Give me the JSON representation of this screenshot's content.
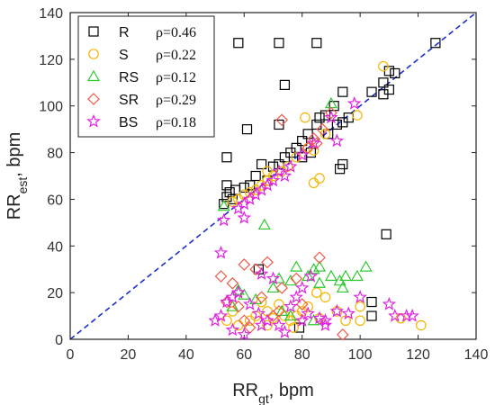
{
  "chart_data": {
    "type": "scatter",
    "xlabel": "RR",
    "xlabel_sub": "gt",
    "xlabel_unit": ", bpm",
    "ylabel": "RR",
    "ylabel_sub": "est",
    "ylabel_unit": ", bpm",
    "xlim": [
      0,
      140
    ],
    "ylim": [
      0,
      140
    ],
    "xticks": [
      0,
      20,
      40,
      60,
      80,
      100,
      120,
      140
    ],
    "yticks": [
      0,
      20,
      40,
      60,
      80,
      100,
      120,
      140
    ],
    "identity_line": true,
    "legend_position": "top-left",
    "series": [
      {
        "name": "R",
        "rho_label": "ρ=0.46",
        "marker": "square",
        "color": "#000000",
        "points": [
          [
            58,
            127
          ],
          [
            72,
            127
          ],
          [
            85,
            127
          ],
          [
            126,
            127
          ],
          [
            112,
            114
          ],
          [
            110,
            115
          ],
          [
            108,
            110
          ],
          [
            110,
            107
          ],
          [
            108,
            105
          ],
          [
            104,
            106
          ],
          [
            94,
            106
          ],
          [
            74,
            109
          ],
          [
            91,
            100
          ],
          [
            88,
            96
          ],
          [
            86,
            95
          ],
          [
            85,
            92
          ],
          [
            92,
            92
          ],
          [
            89,
            88
          ],
          [
            82,
            88
          ],
          [
            80,
            85
          ],
          [
            78,
            82
          ],
          [
            76,
            80
          ],
          [
            74,
            78
          ],
          [
            72,
            75
          ],
          [
            70,
            74
          ],
          [
            66,
            75
          ],
          [
            64,
            70
          ],
          [
            68,
            68
          ],
          [
            62,
            66
          ],
          [
            60,
            65
          ],
          [
            57,
            64
          ],
          [
            55,
            63
          ],
          [
            54,
            61
          ],
          [
            56,
            60
          ],
          [
            53,
            58
          ],
          [
            54,
            78
          ],
          [
            54,
            66
          ],
          [
            61,
            90
          ],
          [
            72,
            92
          ],
          [
            93,
            73
          ],
          [
            94,
            75
          ],
          [
            109,
            45
          ],
          [
            65,
            30
          ],
          [
            104,
            16
          ],
          [
            104,
            10
          ],
          [
            79,
            5
          ],
          [
            94,
            93
          ],
          [
            96,
            95
          ],
          [
            80,
            78
          ],
          [
            83,
            80
          ]
        ]
      },
      {
        "name": "S",
        "rho_label": "ρ=0.22",
        "marker": "circle",
        "color": "#F2B600",
        "points": [
          [
            108,
            117
          ],
          [
            99,
            96
          ],
          [
            88,
            88
          ],
          [
            84,
            81
          ],
          [
            82,
            82
          ],
          [
            78,
            78
          ],
          [
            75,
            74
          ],
          [
            73,
            72
          ],
          [
            70,
            70
          ],
          [
            68,
            68
          ],
          [
            66,
            66
          ],
          [
            64,
            64
          ],
          [
            62,
            63
          ],
          [
            60,
            62
          ],
          [
            58,
            60
          ],
          [
            56,
            59
          ],
          [
            81,
            95
          ],
          [
            86,
            69
          ],
          [
            84,
            67
          ],
          [
            68,
            72
          ],
          [
            121,
            6
          ],
          [
            114,
            9
          ],
          [
            100,
            8
          ],
          [
            92,
            12
          ],
          [
            88,
            18
          ],
          [
            85,
            20
          ],
          [
            82,
            14
          ],
          [
            80,
            12
          ],
          [
            78,
            10
          ],
          [
            76,
            8
          ],
          [
            74,
            10
          ],
          [
            72,
            15
          ],
          [
            70,
            9
          ],
          [
            68,
            12
          ],
          [
            66,
            16
          ],
          [
            64,
            10
          ],
          [
            62,
            8
          ],
          [
            58,
            6
          ],
          [
            56,
            12
          ],
          [
            54,
            8
          ],
          [
            86,
            9
          ],
          [
            95,
            8
          ],
          [
            100,
            14
          ],
          [
            68,
            6
          ],
          [
            77,
            5
          ]
        ]
      },
      {
        "name": "RS",
        "rho_label": "ρ=0.12",
        "marker": "triangle",
        "color": "#2EC82E",
        "points": [
          [
            90,
            101
          ],
          [
            53,
            57
          ],
          [
            67,
            49
          ],
          [
            78,
            31
          ],
          [
            84,
            30
          ],
          [
            86,
            31
          ],
          [
            102,
            31
          ],
          [
            90,
            27
          ],
          [
            95,
            27
          ],
          [
            99,
            27
          ],
          [
            93,
            25
          ],
          [
            86,
            24
          ],
          [
            82,
            27
          ],
          [
            76,
            25
          ],
          [
            72,
            26
          ],
          [
            70,
            22
          ],
          [
            58,
            21
          ],
          [
            60,
            19
          ],
          [
            64,
            17
          ],
          [
            56,
            14
          ],
          [
            73,
            12
          ],
          [
            76,
            10
          ],
          [
            84,
            8
          ],
          [
            94,
            22
          ]
        ]
      },
      {
        "name": "SR",
        "rho_label": "ρ=0.29",
        "marker": "diamond",
        "color": "#F05A4A",
        "points": [
          [
            73,
            94
          ],
          [
            84,
            86
          ],
          [
            87,
            90
          ],
          [
            90,
            97
          ],
          [
            85,
            84
          ],
          [
            82,
            82
          ],
          [
            60,
            32
          ],
          [
            64,
            30
          ],
          [
            68,
            33
          ],
          [
            52,
            27
          ],
          [
            56,
            24
          ],
          [
            73,
            22
          ],
          [
            78,
            26
          ],
          [
            86,
            35
          ],
          [
            54,
            16
          ],
          [
            58,
            14
          ],
          [
            66,
            18
          ],
          [
            72,
            12
          ],
          [
            60,
            8
          ],
          [
            70,
            10
          ],
          [
            94,
            2
          ],
          [
            80,
            15
          ],
          [
            62,
            5
          ]
        ]
      },
      {
        "name": "BS",
        "rho_label": "ρ=0.18",
        "marker": "star",
        "color": "#E020E0",
        "points": [
          [
            98,
            101
          ],
          [
            92,
            85
          ],
          [
            90,
            95
          ],
          [
            84,
            84
          ],
          [
            80,
            79
          ],
          [
            76,
            74
          ],
          [
            74,
            70
          ],
          [
            72,
            72
          ],
          [
            70,
            68
          ],
          [
            68,
            66
          ],
          [
            66,
            64
          ],
          [
            64,
            62
          ],
          [
            62,
            60
          ],
          [
            60,
            58
          ],
          [
            58,
            56
          ],
          [
            60,
            52
          ],
          [
            53,
            51
          ],
          [
            52,
            37
          ],
          [
            66,
            28
          ],
          [
            70,
            26
          ],
          [
            80,
            22
          ],
          [
            83,
            27
          ],
          [
            58,
            20
          ],
          [
            56,
            18
          ],
          [
            54,
            16
          ],
          [
            52,
            10
          ],
          [
            50,
            8
          ],
          [
            62,
            15
          ],
          [
            65,
            11
          ],
          [
            68,
            8
          ],
          [
            72,
            6
          ],
          [
            76,
            14
          ],
          [
            78,
            18
          ],
          [
            82,
            11
          ],
          [
            86,
            9
          ],
          [
            88,
            6
          ],
          [
            92,
            12
          ],
          [
            96,
            11
          ],
          [
            100,
            18
          ],
          [
            110,
            15
          ],
          [
            112,
            10
          ],
          [
            116,
            10
          ],
          [
            118,
            10
          ],
          [
            88,
            8
          ],
          [
            56,
            4
          ],
          [
            60,
            2
          ],
          [
            66,
            6
          ],
          [
            74,
            3
          ],
          [
            80,
            8
          ]
        ]
      }
    ]
  }
}
